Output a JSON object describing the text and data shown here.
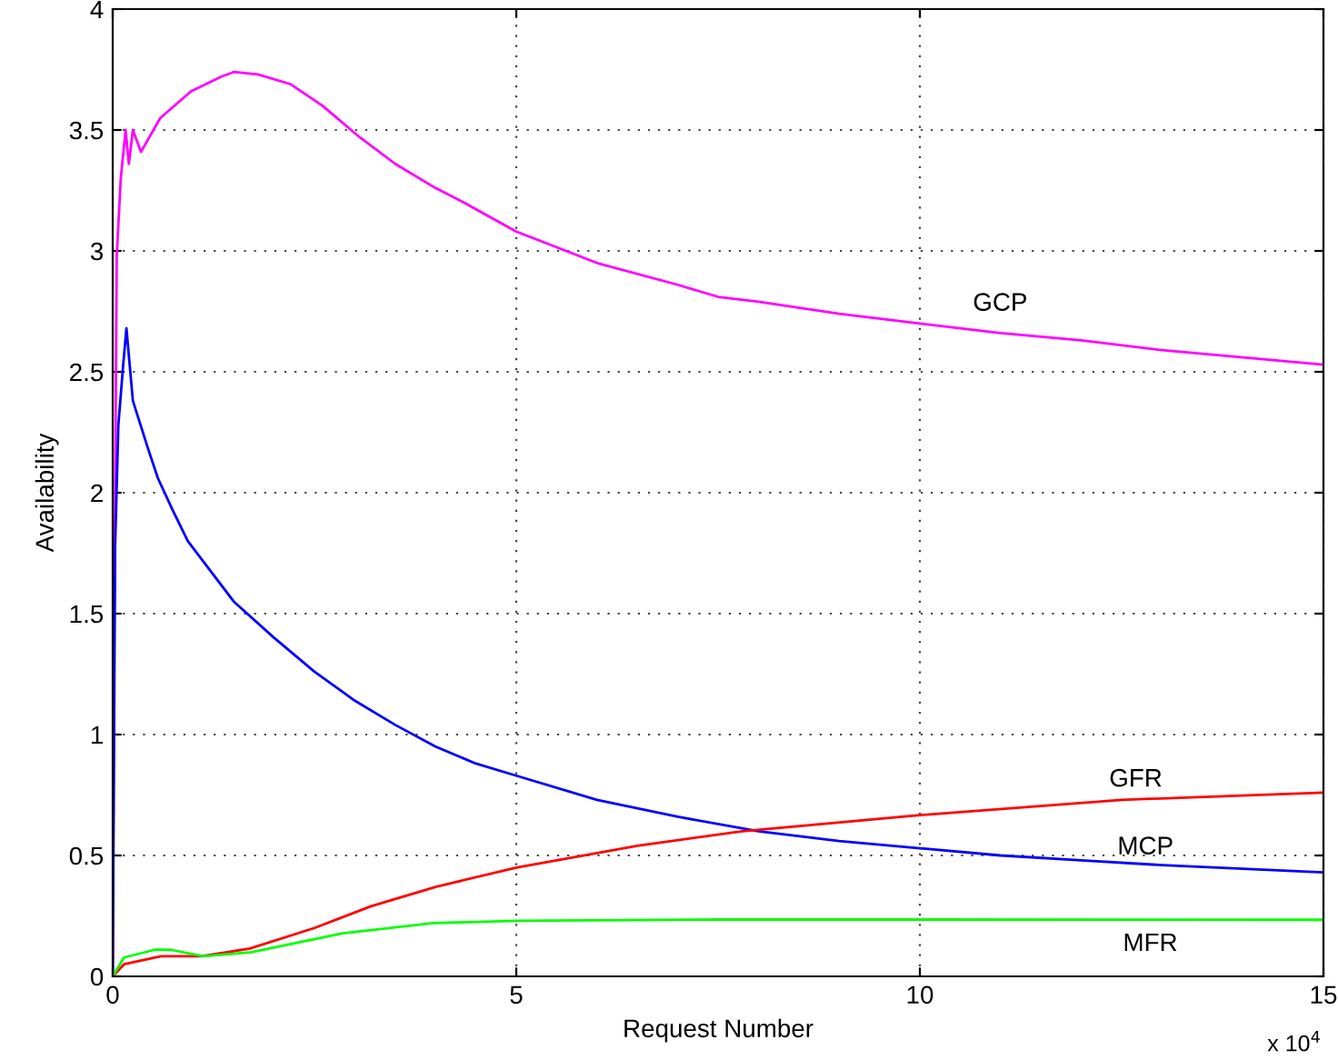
{
  "chart_data": {
    "type": "line",
    "xlabel": "Request Number",
    "ylabel": "Availability",
    "xlim": [
      0,
      15
    ],
    "xticks": [
      0,
      5,
      10,
      15
    ],
    "ylim": [
      0,
      4
    ],
    "yticks": [
      0,
      0.5,
      1,
      1.5,
      2,
      2.5,
      3,
      3.5,
      4
    ],
    "grid": true,
    "line_style": "solid",
    "marker": "none",
    "series": [
      {
        "name": "GCP",
        "color": "#ff00ff",
        "x": [
          0,
          0.02,
          0.05,
          0.1,
          0.16,
          0.2,
          0.25,
          0.35,
          0.59,
          0.97,
          1.34,
          1.5,
          1.8,
          2.2,
          2.6,
          3.06,
          3.5,
          4.0,
          4.35,
          5,
          6,
          7,
          7.5,
          8,
          9,
          10,
          11,
          12,
          13,
          14,
          15
        ],
        "values": [
          0,
          1.5,
          2.98,
          3.3,
          3.5,
          3.36,
          3.5,
          3.41,
          3.55,
          3.66,
          3.72,
          3.74,
          3.73,
          3.69,
          3.6,
          3.47,
          3.36,
          3.26,
          3.2,
          3.08,
          2.95,
          2.86,
          2.81,
          2.79,
          2.74,
          2.7,
          2.66,
          2.63,
          2.59,
          2.56,
          2.53
        ]
      },
      {
        "name": "MCP",
        "color": "#0000ff",
        "x": [
          0,
          0.03,
          0.07,
          0.13,
          0.17,
          0.25,
          0.44,
          0.56,
          0.74,
          0.93,
          1.5,
          2,
          2.5,
          3,
          3.5,
          4,
          4.5,
          5,
          6,
          7,
          8,
          9,
          10,
          11,
          12,
          13,
          14,
          15
        ],
        "values": [
          0,
          1.78,
          2.28,
          2.53,
          2.68,
          2.38,
          2.18,
          2.06,
          1.93,
          1.8,
          1.55,
          1.4,
          1.26,
          1.14,
          1.04,
          0.95,
          0.88,
          0.83,
          0.73,
          0.66,
          0.6,
          0.56,
          0.53,
          0.5,
          0.48,
          0.46,
          0.445,
          0.43
        ]
      },
      {
        "name": "GFR",
        "color": "#ff0000",
        "x": [
          0,
          0.14,
          0.6,
          1.1,
          1.7,
          2.5,
          3.2,
          4,
          5,
          6.5,
          7.8,
          10,
          12.5,
          15
        ],
        "values": [
          0,
          0.05,
          0.083,
          0.083,
          0.115,
          0.2,
          0.29,
          0.37,
          0.45,
          0.54,
          0.6,
          0.667,
          0.73,
          0.76
        ]
      },
      {
        "name": "MFR",
        "color": "#00ff00",
        "x": [
          0,
          0.14,
          0.52,
          0.72,
          1.12,
          1.72,
          2.85,
          3.97,
          5,
          7.5,
          10,
          15
        ],
        "values": [
          0,
          0.078,
          0.11,
          0.11,
          0.083,
          0.1,
          0.178,
          0.22,
          0.23,
          0.235,
          0.235,
          0.234
        ]
      }
    ],
    "annotations": [
      "x 10$^{4}$"
    ]
  }
}
